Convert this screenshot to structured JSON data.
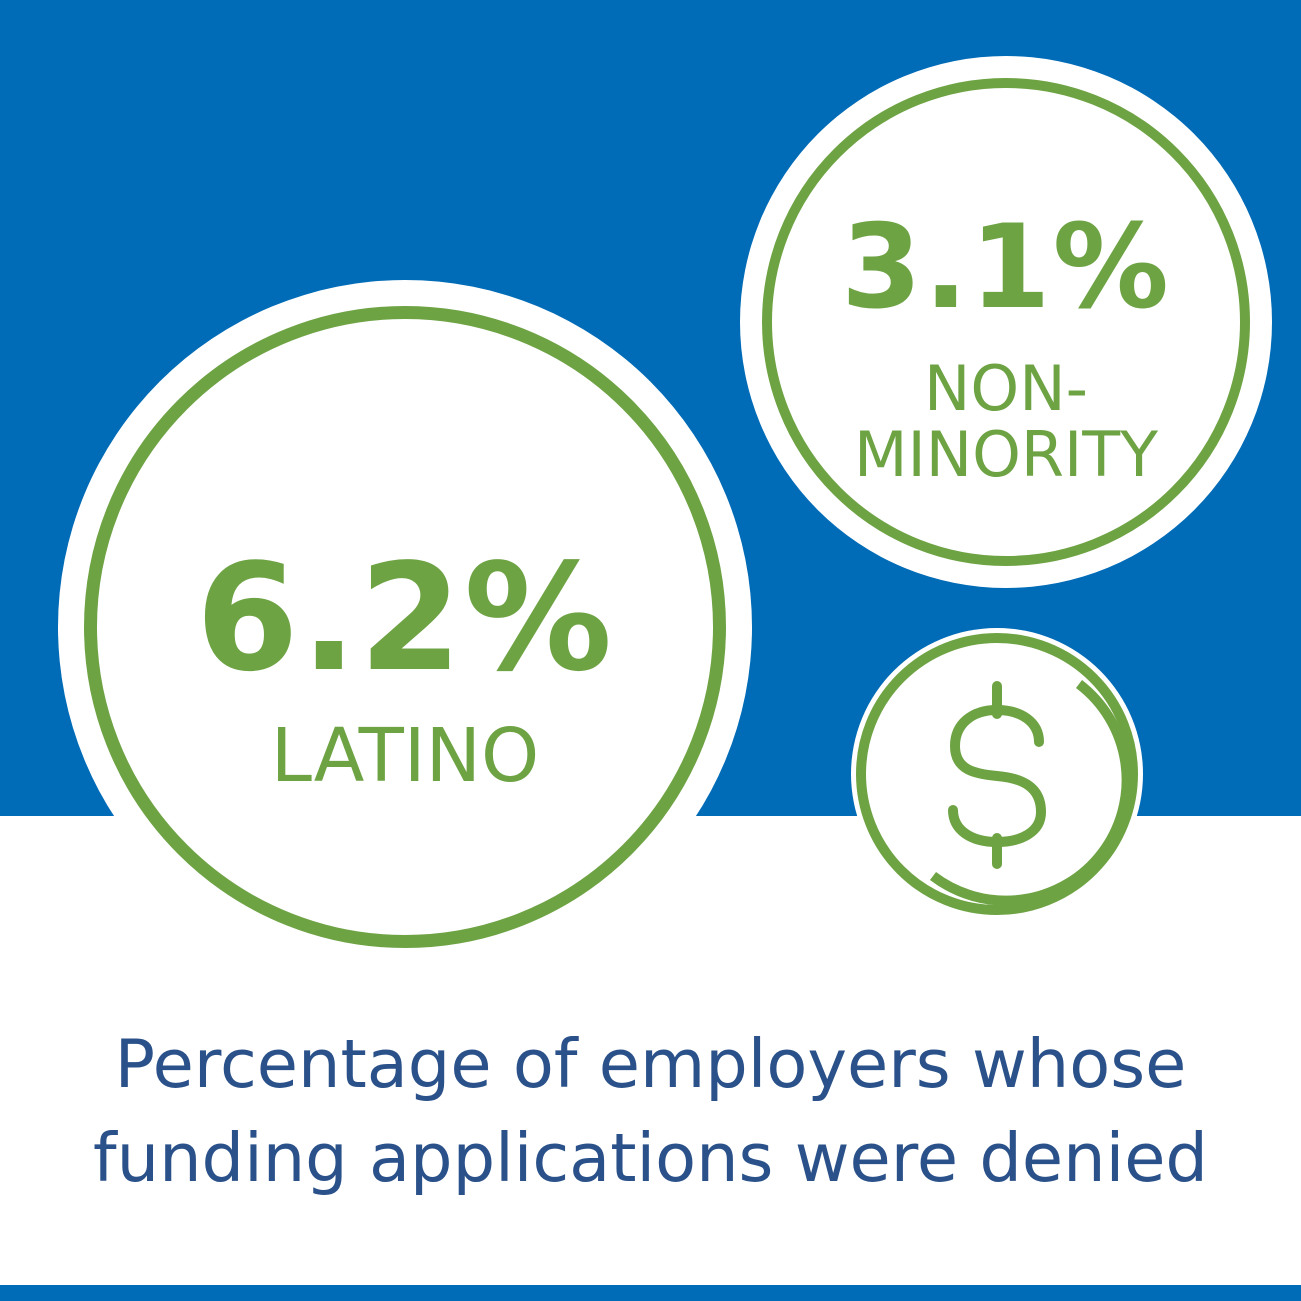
{
  "colors": {
    "blue": "#006bb6",
    "green": "#6ea344",
    "navy": "#2a5189",
    "white": "#ffffff"
  },
  "stats": [
    {
      "value": "6.2%",
      "label": "LATINO"
    },
    {
      "value": "3.1%",
      "label_lines": [
        "NON-",
        "MINORITY"
      ]
    }
  ],
  "icon": "dollar-coin-icon",
  "caption": {
    "line1": "Percentage of employers whose",
    "line2": "funding applications were denied"
  }
}
